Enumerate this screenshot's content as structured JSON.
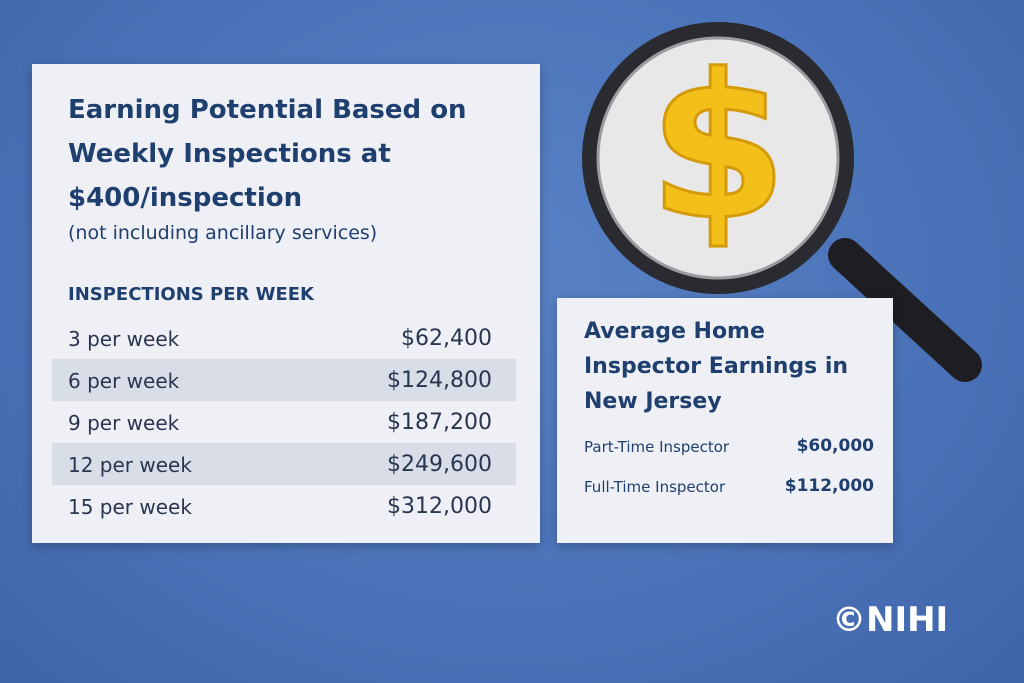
{
  "left_card": {
    "title": "Earning Potential Based on Weekly Inspections at $400/inspection",
    "subtitle": "(not including ancillary services)",
    "table": {
      "header": "INSPECTIONS PER WEEK",
      "rows": [
        [
          "3 per week",
          "$62,400"
        ],
        [
          "6 per week",
          "$124,800"
        ],
        [
          "9 per week",
          "$187,200"
        ],
        [
          "12 per week",
          "$249,600"
        ],
        [
          "15 per week",
          "$312,000"
        ]
      ]
    }
  },
  "magnifier": {
    "symbol": "$"
  },
  "right_card": {
    "title": "Average Home Inspector Earnings in New Jersey",
    "rows": [
      [
        "Part-Time Inspector",
        "$60,000"
      ],
      [
        "Full-Time Inspector",
        "$112,000"
      ]
    ]
  },
  "logo": "©NIHI"
}
